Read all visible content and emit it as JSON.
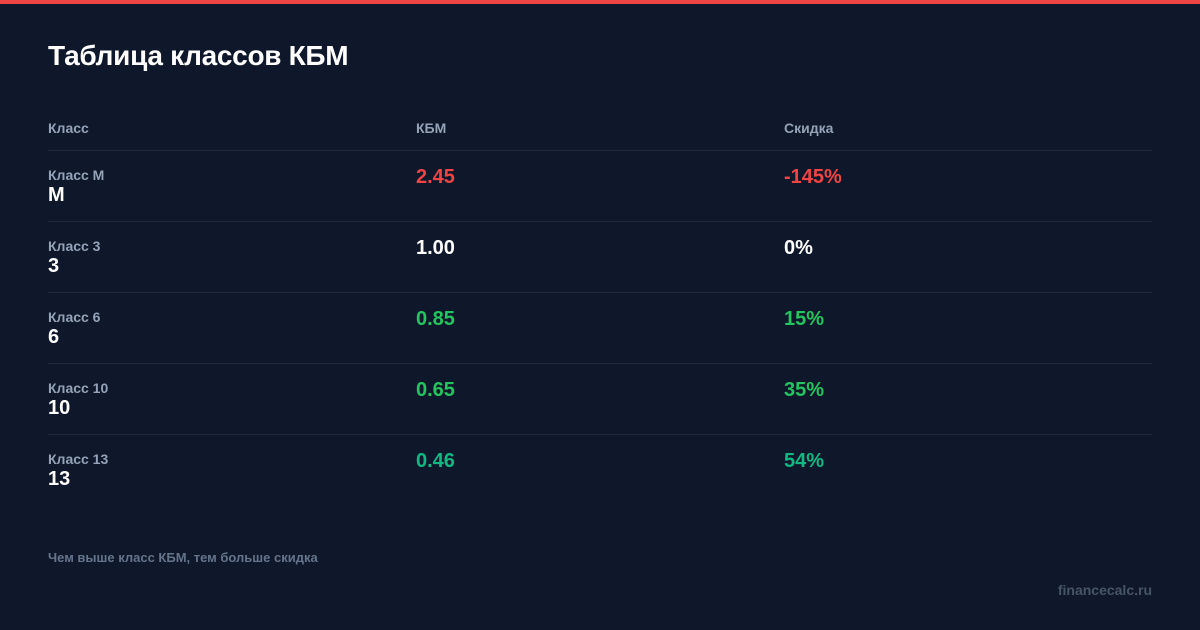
{
  "colors": {
    "accent": "#ef4444",
    "background": "#0f172a",
    "negative": "#ef4444",
    "neutral": "#ffffff",
    "positive": "#22c55e",
    "positive_strong": "#10b981"
  },
  "title": "Таблица классов КБМ",
  "table": {
    "headers": [
      "Класс",
      "КБМ",
      "Скидка"
    ],
    "rows": [
      {
        "label": "Класс М",
        "cls": "М",
        "kbm": "2.45",
        "discount": "-145%",
        "color": "#ef4444"
      },
      {
        "label": "Класс 3",
        "cls": "3",
        "kbm": "1.00",
        "discount": "0%",
        "color": "#ffffff"
      },
      {
        "label": "Класс 6",
        "cls": "6",
        "kbm": "0.85",
        "discount": "15%",
        "color": "#22c55e"
      },
      {
        "label": "Класс 10",
        "cls": "10",
        "kbm": "0.65",
        "discount": "35%",
        "color": "#22c55e"
      },
      {
        "label": "Класс 13",
        "cls": "13",
        "kbm": "0.46",
        "discount": "54%",
        "color": "#10b981"
      }
    ]
  },
  "footnote": "Чем выше класс КБМ, тем больше скидка",
  "brand": "financecalc.ru"
}
